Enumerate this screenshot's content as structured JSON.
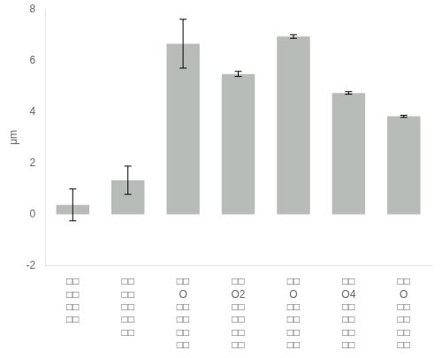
{
  "chart_data": {
    "type": "bar",
    "categories": [
      "□□\n□□\n□□\n□□",
      "□□\n□□\n□□\n□□\n□□",
      "□□\nO\n□□\n□□\n□□\n□□",
      "□□\nO2\n□□\n□□\n□□\n□□",
      "□□\nO\n□□\n□□\n□□\n□□",
      "□□\nO4\n□□\n□□\n□□\n□□",
      "□□\nO\n□□\n□□\n□□\n□□"
    ],
    "values": [
      0.37,
      1.33,
      6.65,
      5.47,
      6.93,
      4.73,
      3.82
    ],
    "errors": [
      0.62,
      0.55,
      0.95,
      0.1,
      0.07,
      0.05,
      0.04
    ],
    "color": "#b8bcb8",
    "ylabel": "μm",
    "ylim": [
      -2,
      8
    ],
    "yticks": [
      -2,
      0,
      2,
      4,
      6,
      8
    ],
    "grid": false
  }
}
